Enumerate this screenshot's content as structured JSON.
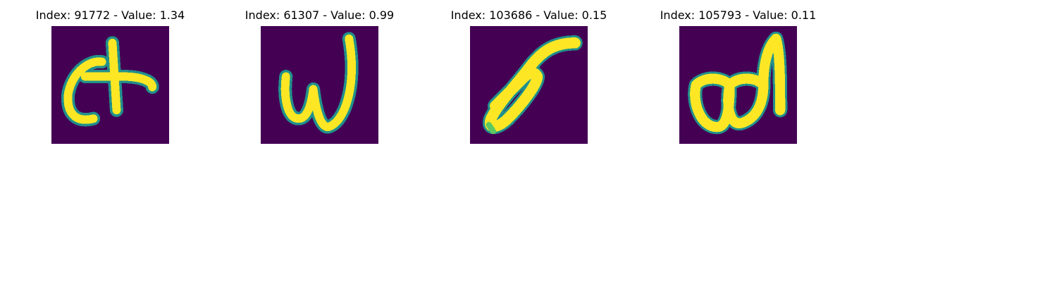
{
  "colors": {
    "background": "#440154",
    "mid_dark": "#31688e",
    "mid": "#21918c",
    "mid_light": "#5ec962",
    "stroke": "#fde725"
  },
  "panels": [
    {
      "title": "Index: 91772 - Value: 1.34",
      "glyph": "handwritten-t-like-character"
    },
    {
      "title": "Index: 61307 - Value: 0.99",
      "glyph": "handwritten-w-like-character"
    },
    {
      "title": "Index: 103686 - Value: 0.15",
      "glyph": "handwritten-slanted-loop-character"
    },
    {
      "title": "Index: 105793 - Value: 0.11",
      "glyph": "handwritten-ad-like-character"
    }
  ]
}
